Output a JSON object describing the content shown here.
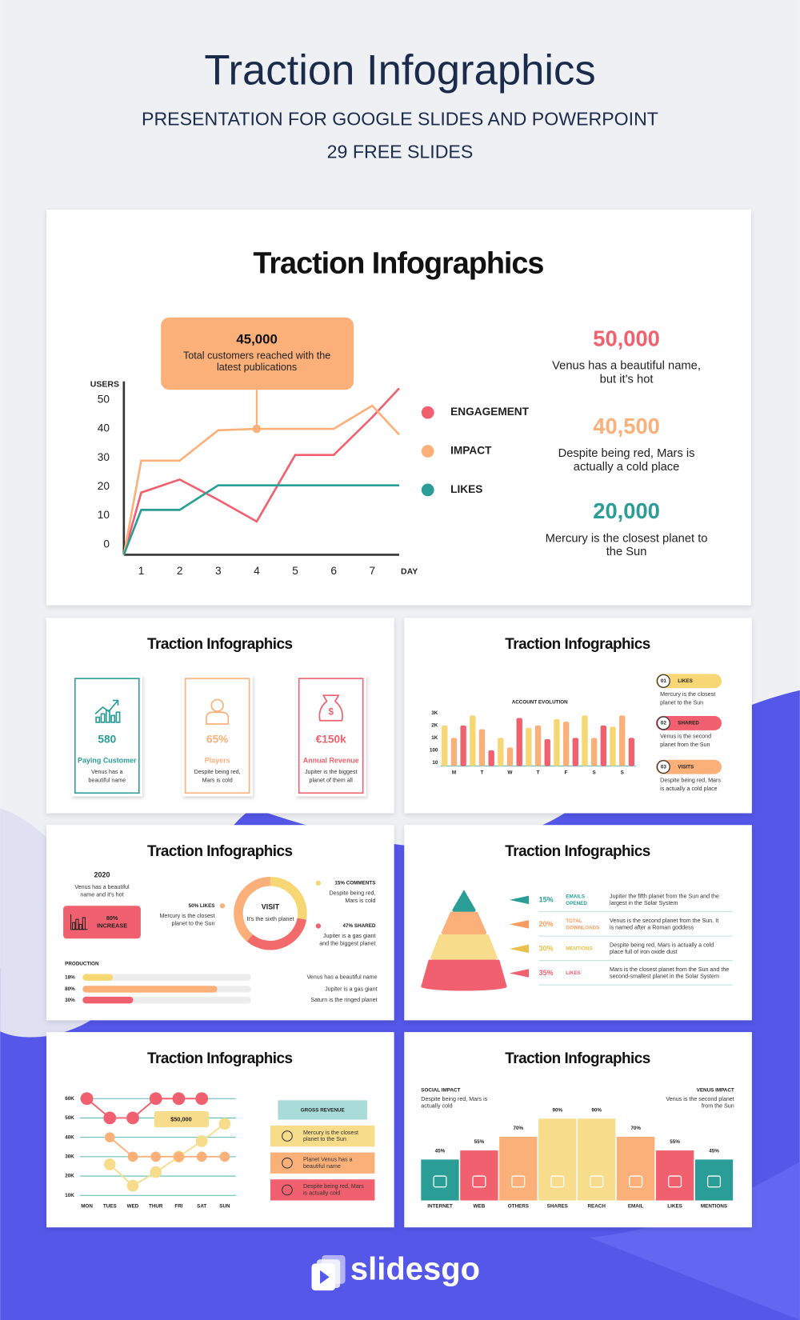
{
  "header": {
    "title": "Traction Infographics",
    "subtitle": "PRESENTATION FOR GOOGLE SLIDES AND POWERPOINT",
    "note": "29 FREE SLIDES"
  },
  "main_slide": {
    "title": "Traction Infographics",
    "stats": [
      {
        "value": "50,000",
        "text": [
          "Venus has a beautiful name,",
          "but it’s hot"
        ],
        "color": "#f0606e"
      },
      {
        "value": "40,500",
        "text": [
          "Despite being red, Mars is",
          "actually a cold place"
        ],
        "color": "#fbb07a"
      },
      {
        "value": "20,000",
        "text": [
          "Mercury is the closest planet to",
          "the Sun"
        ],
        "color": "#2a9d96"
      }
    ]
  },
  "chart_data": [
    {
      "type": "line",
      "y_label": "USERS",
      "x_label": "DAY",
      "x": [
        0.55,
        1,
        2,
        3,
        4,
        5,
        6,
        7,
        7.7
      ],
      "xlim": [
        0.55,
        7.7
      ],
      "ylim": [
        -3.5,
        56.4
      ],
      "xticks": [
        1,
        2,
        3,
        4,
        5,
        6,
        7
      ],
      "yticks": [
        0,
        10,
        20,
        30,
        40,
        50
      ],
      "series": [
        {
          "name": "ENGAGEMENT",
          "color": "#f0606e",
          "values": [
            -3.5,
            18,
            22.5,
            15.5,
            8,
            31,
            31,
            44,
            54
          ]
        },
        {
          "name": "IMPACT",
          "color": "#fbb07a",
          "values": [
            -3.5,
            29,
            29,
            39.5,
            40,
            40,
            40,
            48,
            38
          ]
        },
        {
          "name": "LIKES",
          "color": "#2a9d96",
          "values": [
            -3.5,
            12,
            12,
            20.5,
            20.5,
            20.5,
            20.5,
            20.5,
            20.5
          ]
        }
      ],
      "annotation": {
        "title": "45,000",
        "text": [
          "Total customers reached with the",
          "latest publications"
        ]
      }
    },
    {
      "type": "bar",
      "title": "ACCOUNT EVOLUTION",
      "categories": [
        null,
        "M",
        null,
        null,
        "T",
        null,
        null,
        "W",
        null,
        null,
        "T",
        null,
        null,
        "F",
        null,
        null,
        "S",
        null,
        null,
        "S",
        null
      ],
      "values": [
        2000,
        1000,
        2000,
        2800,
        1700,
        100,
        1000,
        300,
        2600,
        1800,
        2000,
        900,
        2500,
        2300,
        1000,
        2800,
        1000,
        2000,
        1900,
        2800,
        1000
      ],
      "palette": [
        "#f7d774",
        "#fbb07a",
        "#f0606e"
      ],
      "ylim": [
        0,
        3000
      ],
      "yticks": [
        10,
        100,
        {
          "value": 1000,
          "label": "1K"
        },
        {
          "value": 2000,
          "label": "2K"
        },
        {
          "value": 3000,
          "label": "3K"
        }
      ]
    },
    {
      "type": "line",
      "categories": [
        "MON",
        "TUES",
        "WED",
        "THUR",
        "FRI",
        "SAT",
        "SUN"
      ],
      "ylim": [
        10000,
        60000
      ],
      "yticks": [
        {
          "value": 10000,
          "label": "10K"
        },
        {
          "value": 20000,
          "label": "20K"
        },
        {
          "value": 30000,
          "label": "30K"
        },
        {
          "value": 40000,
          "label": "40K"
        },
        {
          "value": 50000,
          "label": "50K"
        },
        {
          "value": 60000,
          "label": "60K"
        }
      ],
      "grid": true,
      "grid_color": "#5cb8b2",
      "series": [
        {
          "color": "#f7dc8c",
          "values": [
            null,
            26000,
            15000,
            22000,
            30000,
            38000,
            47000
          ]
        },
        {
          "color": "#fbb07a",
          "values": [
            null,
            40000,
            30000,
            30000,
            30000,
            30000,
            30000
          ]
        },
        {
          "color": "#f0606e",
          "values": [
            60000,
            50000,
            50000,
            60000,
            60000,
            60000,
            null
          ]
        }
      ],
      "annotation": "$50,000"
    },
    {
      "type": "bar",
      "categories": [
        "INTERNET",
        "WEB",
        "OTHERS",
        "SHARES",
        "REACH",
        "EMAIL",
        "LIKES",
        "MENTIONS"
      ],
      "values": [
        45,
        55,
        70,
        90,
        90,
        70,
        55,
        45
      ],
      "value_labels": [
        "45%",
        "55%",
        "70%",
        "90%",
        "90%",
        "70%",
        "55%",
        "45%"
      ],
      "colors": [
        "#2a9d96",
        "#f0606e",
        "#fbb07a",
        "#f7dc8c",
        "#f7dc8c",
        "#fbb07a",
        "#f0606e",
        "#2a9d96"
      ],
      "ylim": [
        0,
        100
      ]
    }
  ],
  "cards_slide": {
    "title": "Traction Infographics",
    "cards": [
      {
        "value": "580",
        "label": "Paying Customer",
        "text": [
          "Venus has a",
          "beautiful name"
        ],
        "color": "#2a9d96"
      },
      {
        "value": "65%",
        "label": "Players",
        "text": [
          "Despite being red,",
          "Mars is cold"
        ],
        "color": "#fbb07a"
      },
      {
        "value": "€150k",
        "label": "Annual Revenue",
        "text": [
          "Jupiter is the biggest",
          "planet of them all"
        ],
        "color": "#f0606e"
      }
    ]
  },
  "evolution_slide": {
    "title": "Traction Infographics",
    "items": [
      {
        "number": "01",
        "label": "LIKES",
        "text": [
          "Mercury is the closest",
          "planet to the Sun"
        ],
        "color": "#f7d774"
      },
      {
        "number": "02",
        "label": "SHARED",
        "text": [
          "Venus is the second",
          "planet from the Sun"
        ],
        "color": "#f0606e"
      },
      {
        "number": "03",
        "label": "VISITS",
        "text": [
          "Despite being red, Mars",
          "is actually a cold place"
        ],
        "color": "#fbb07a"
      }
    ]
  },
  "visit_slide": {
    "title": "Traction Infographics",
    "year": "2020",
    "year_text": [
      "Venus has a beautiful",
      "name and it’s hot"
    ],
    "increase": [
      "80%",
      "INCREASE"
    ],
    "donut": {
      "title": "VISIT",
      "subtitle": "It’s the sixth planet"
    },
    "notes": [
      {
        "label": "50% LIKES",
        "text": [
          "Mercury is the closest",
          "planet to the Sun"
        ],
        "color": "#fbb07a"
      },
      {
        "label": "15% COMMENTS",
        "text": [
          "Despite being red,",
          "Mars is cold"
        ],
        "color": "#f7d774"
      },
      {
        "label": "47% SHARED",
        "text": [
          "Jupiter is a gas giant",
          "and the biggest planet"
        ],
        "color": "#f0606e"
      }
    ],
    "production": {
      "title": "PRODUCTION",
      "values": [
        18,
        80,
        30
      ],
      "value_labels": [
        "18%",
        "80%",
        "30%"
      ],
      "text": [
        "Venus has a beautiful name",
        "Jupiter is a gas giant",
        "Saturn is the ringed planet"
      ],
      "colors": [
        "#f7d774",
        "#fbb07a",
        "#f0606e"
      ]
    }
  },
  "pyramid_slide": {
    "title": "Traction Infographics",
    "rows": [
      {
        "percent": "15%",
        "label": [
          "EMAILS",
          "OPENED"
        ],
        "text": [
          "Jupiter the fifth planet from the Sun and the",
          "largest in the Solar System"
        ],
        "color": "#2a9d96"
      },
      {
        "percent": "20%",
        "label": [
          "TOTAL",
          "DOWNLOADS"
        ],
        "text": [
          "Venus is the second planet from the Sun. It",
          "is named after a Roman goddess"
        ],
        "color": "#fb9a5e"
      },
      {
        "percent": "30%",
        "label": [
          "MENTIONS"
        ],
        "text": [
          "Despite being red, Mars is actually a cold",
          "place full of iron oxide dust"
        ],
        "color": "#e9c04a"
      },
      {
        "percent": "35%",
        "label": [
          "LIKES"
        ],
        "text": [
          "Mars is the closest planet from the Sun and the",
          "second-smallest planet in the Solar System"
        ],
        "color": "#f0606e"
      }
    ]
  },
  "revenue_slide": {
    "title": "Traction Infographics",
    "box_title": "GROSS REVENUE",
    "items": [
      {
        "text": [
          "Mercury is the closest",
          "planet to the Sun"
        ],
        "color": "#f7dc8c"
      },
      {
        "text": [
          "Planet Venus has a",
          "beautiful name"
        ],
        "color": "#fbb07a"
      },
      {
        "text": [
          "Despite being red, Mars",
          "is actually cold"
        ],
        "color": "#f0606e"
      }
    ]
  },
  "impact_slide": {
    "title": "Traction Infographics",
    "left": {
      "title": "SOCIAL IMPACT",
      "text": [
        "Despite being red, Mars is",
        "actually cold"
      ]
    },
    "right": {
      "title": "VENUS IMPACT",
      "text": [
        "Venus is the second planet",
        "from the Sun"
      ]
    }
  },
  "footer": {
    "brand": "slidesgo"
  }
}
